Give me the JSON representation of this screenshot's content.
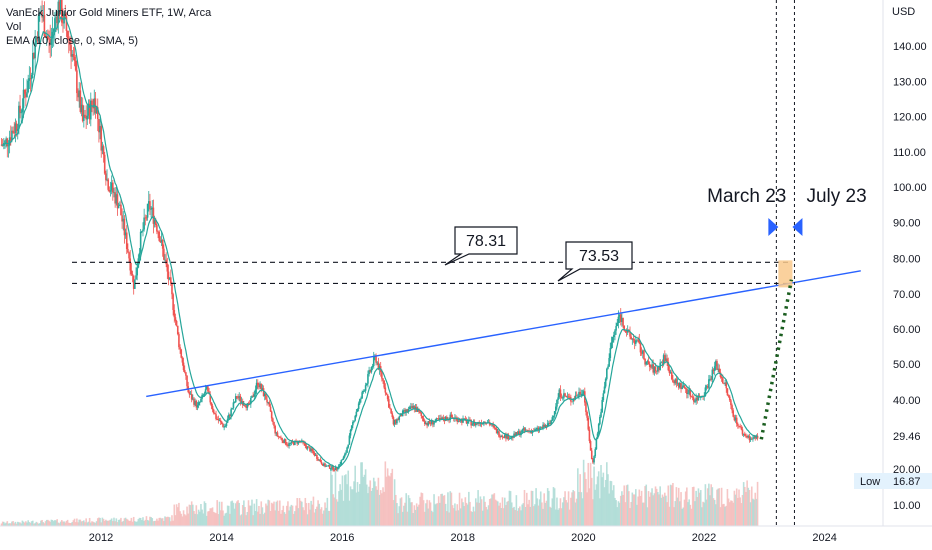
{
  "chart_data": {
    "type": "candlestick",
    "title": "VanEck Junior Gold Miners ETF, 1W, Arca",
    "indicators": [
      "Vol",
      "EMA (10, close, 0, SMA, 5)"
    ],
    "currency_label": "USD",
    "y_ticks": [
      "140.00",
      "130.00",
      "120.00",
      "110.00",
      "100.00",
      "90.00",
      "80.00",
      "70.00",
      "60.00",
      "50.00",
      "40.00",
      "20.00",
      "10.00"
    ],
    "y_tick_values": [
      140,
      130,
      120,
      110,
      100,
      90,
      80,
      70,
      60,
      50,
      40,
      20,
      10
    ],
    "x_ticks": [
      "2012",
      "2014",
      "2016",
      "2018",
      "2020",
      "2022",
      "2024"
    ],
    "x_tick_years": [
      2012,
      2014,
      2016,
      2018,
      2020,
      2022,
      2024
    ],
    "last_price_label": "29.46",
    "last_price": 29.46,
    "low_label": "Low",
    "low_value": "16.87",
    "low_price": 16.87,
    "levels": [
      {
        "label": "78.31",
        "value": 78.31
      },
      {
        "label": "73.53",
        "value": 73.53
      }
    ],
    "trendline": {
      "start": [
        2012.75,
        41
      ],
      "end": [
        2024.6,
        76.5
      ]
    },
    "vertical_markers": [
      {
        "label": "March 23",
        "year": 2023.2
      },
      {
        "label": "July 23",
        "year": 2023.5
      }
    ],
    "projection": {
      "start": [
        2022.95,
        28.5
      ],
      "end": [
        2023.45,
        74
      ]
    },
    "price_path": [
      [
        2010.4,
        112
      ],
      [
        2010.6,
        118
      ],
      [
        2010.8,
        130
      ],
      [
        2011.0,
        150
      ],
      [
        2011.15,
        140
      ],
      [
        2011.3,
        152
      ],
      [
        2011.5,
        140
      ],
      [
        2011.7,
        118
      ],
      [
        2011.9,
        125
      ],
      [
        2012.1,
        102
      ],
      [
        2012.3,
        95
      ],
      [
        2012.45,
        82
      ],
      [
        2012.55,
        72
      ],
      [
        2012.65,
        85
      ],
      [
        2012.8,
        95
      ],
      [
        2012.95,
        88
      ],
      [
        2013.15,
        72
      ],
      [
        2013.3,
        55
      ],
      [
        2013.45,
        42
      ],
      [
        2013.6,
        38
      ],
      [
        2013.75,
        43
      ],
      [
        2013.9,
        35
      ],
      [
        2014.05,
        32
      ],
      [
        2014.25,
        41
      ],
      [
        2014.45,
        38
      ],
      [
        2014.6,
        45
      ],
      [
        2014.75,
        40
      ],
      [
        2014.9,
        30
      ],
      [
        2015.1,
        27
      ],
      [
        2015.3,
        28
      ],
      [
        2015.5,
        25
      ],
      [
        2015.7,
        21
      ],
      [
        2015.9,
        20
      ],
      [
        2016.05,
        24
      ],
      [
        2016.2,
        35
      ],
      [
        2016.4,
        45
      ],
      [
        2016.55,
        52
      ],
      [
        2016.7,
        44
      ],
      [
        2016.85,
        33
      ],
      [
        2017.0,
        36
      ],
      [
        2017.2,
        38
      ],
      [
        2017.4,
        33
      ],
      [
        2017.6,
        34
      ],
      [
        2017.8,
        35
      ],
      [
        2018.0,
        34
      ],
      [
        2018.2,
        33
      ],
      [
        2018.4,
        34
      ],
      [
        2018.6,
        30
      ],
      [
        2018.8,
        29
      ],
      [
        2019.0,
        31
      ],
      [
        2019.2,
        31
      ],
      [
        2019.45,
        33
      ],
      [
        2019.6,
        42
      ],
      [
        2019.8,
        40
      ],
      [
        2020.0,
        43
      ],
      [
        2020.15,
        21
      ],
      [
        2020.3,
        38
      ],
      [
        2020.45,
        55
      ],
      [
        2020.6,
        64
      ],
      [
        2020.75,
        58
      ],
      [
        2020.9,
        56
      ],
      [
        2021.05,
        50
      ],
      [
        2021.2,
        48
      ],
      [
        2021.35,
        52
      ],
      [
        2021.5,
        45
      ],
      [
        2021.7,
        43
      ],
      [
        2021.85,
        40
      ],
      [
        2022.0,
        42
      ],
      [
        2022.2,
        50
      ],
      [
        2022.35,
        44
      ],
      [
        2022.5,
        35
      ],
      [
        2022.65,
        30
      ],
      [
        2022.8,
        28.5
      ],
      [
        2022.9,
        29.46
      ]
    ]
  }
}
